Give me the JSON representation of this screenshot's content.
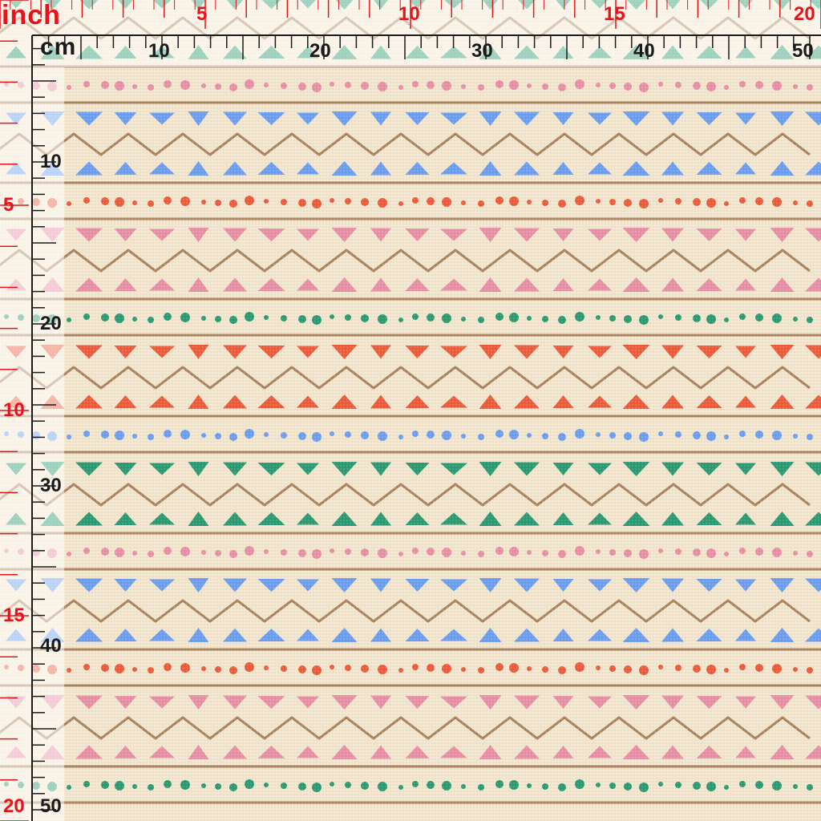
{
  "ruler": {
    "inch_unit": "inch",
    "cm_unit": "cm",
    "inch_top_labels": [
      "5",
      "10",
      "15",
      "20"
    ],
    "cm_top_labels": [
      "10",
      "20",
      "30",
      "40",
      "50"
    ],
    "inch_left_labels": [
      "5",
      "10",
      "15",
      "20"
    ],
    "cm_left_labels": [
      "10",
      "20",
      "30",
      "40",
      "50"
    ],
    "inch_color": "#e8131a",
    "cm_color": "#1a1a1a"
  },
  "pattern": {
    "background": "#f3e6cf",
    "line_color": "#a9825f",
    "colors": {
      "green": "#2a9a72",
      "pink": "#e88fa6",
      "blue": "#6b9ef0",
      "orange": "#ec5b3a"
    }
  }
}
